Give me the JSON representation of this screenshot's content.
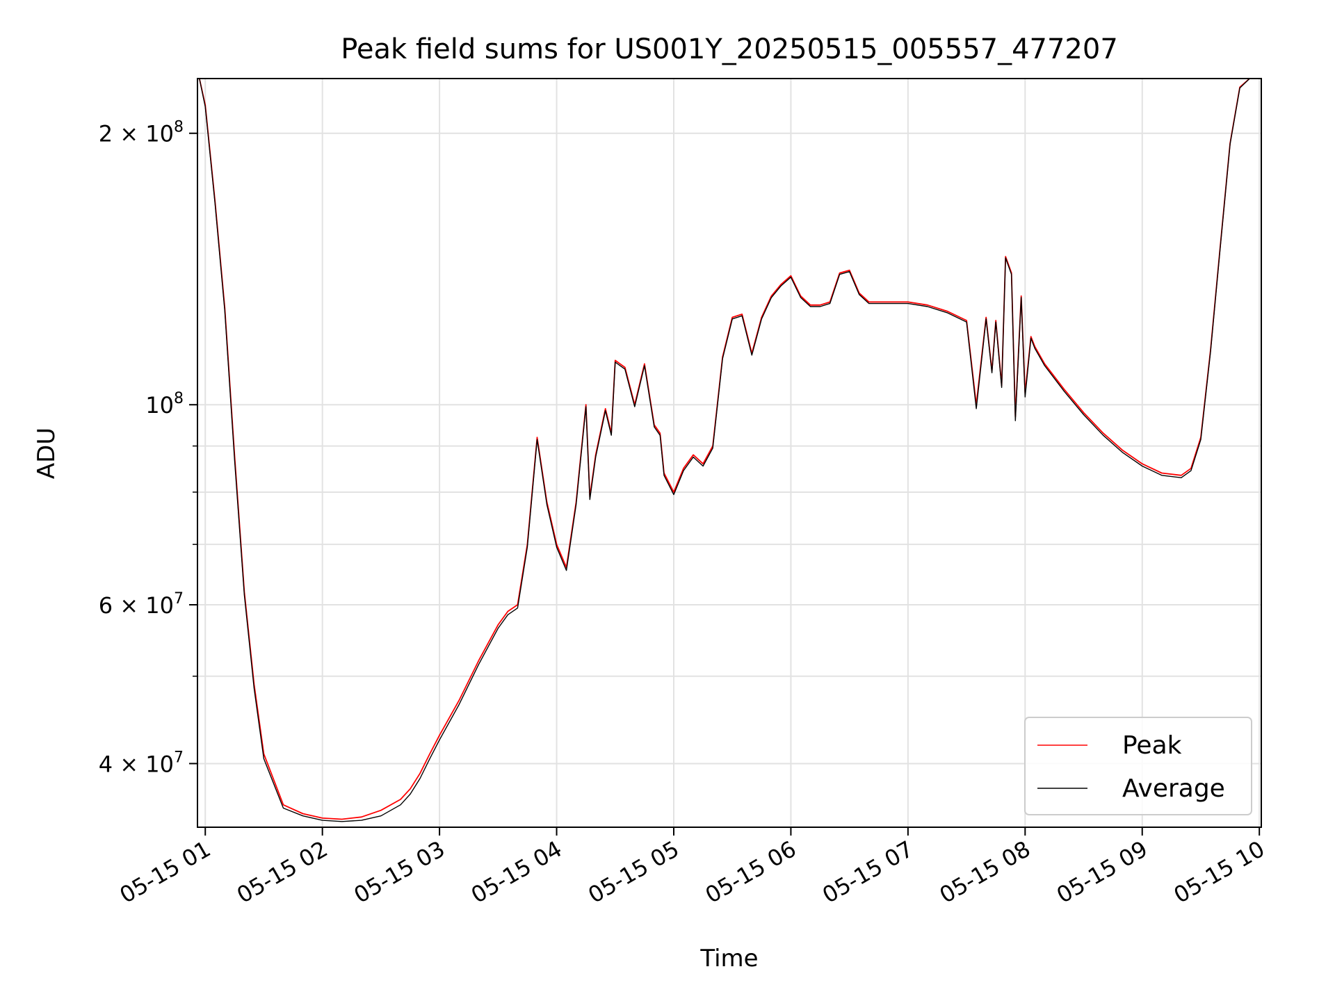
{
  "chart_data": {
    "type": "line",
    "title": "Peak field sums for US001Y_20250515_005557_477207",
    "xlabel": "Time",
    "ylabel": "ADU",
    "y_scale": "log",
    "ylim": [
      34000000,
      230000000
    ],
    "xlim": [
      "2025-05-15 00:56",
      "2025-05-15 10:01"
    ],
    "x_ticks": [
      "05-15 01",
      "05-15 02",
      "05-15 03",
      "05-15 04",
      "05-15 05",
      "05-15 06",
      "05-15 07",
      "05-15 08",
      "05-15 09",
      "05-15 10"
    ],
    "y_ticks": [
      {
        "value": 40000000,
        "mantissa": "4",
        "exp": "7"
      },
      {
        "value": 60000000,
        "mantissa": "6",
        "exp": "7"
      },
      {
        "value": 100000000,
        "mantissa": "",
        "exp": "8"
      },
      {
        "value": 200000000,
        "mantissa": "2",
        "exp": "8"
      }
    ],
    "grid": true,
    "legend_position": "lower-right",
    "x": [
      "00:57",
      "01:00",
      "01:05",
      "01:10",
      "01:15",
      "01:20",
      "01:25",
      "01:30",
      "01:40",
      "01:50",
      "02:00",
      "02:10",
      "02:20",
      "02:30",
      "02:40",
      "02:45",
      "02:50",
      "02:55",
      "03:00",
      "03:10",
      "03:20",
      "03:30",
      "03:35",
      "03:40",
      "03:45",
      "03:50",
      "03:55",
      "04:00",
      "04:05",
      "04:10",
      "04:15",
      "04:17",
      "04:20",
      "04:25",
      "04:28",
      "04:30",
      "04:35",
      "04:40",
      "04:45",
      "04:50",
      "04:53",
      "04:55",
      "05:00",
      "05:05",
      "05:10",
      "05:15",
      "05:20",
      "05:25",
      "05:30",
      "05:35",
      "05:40",
      "05:45",
      "05:50",
      "05:55",
      "06:00",
      "06:05",
      "06:10",
      "06:15",
      "06:20",
      "06:25",
      "06:30",
      "06:35",
      "06:40",
      "06:45",
      "06:50",
      "07:00",
      "07:10",
      "07:20",
      "07:30",
      "07:35",
      "07:40",
      "07:43",
      "07:45",
      "07:48",
      "07:50",
      "07:53",
      "07:55",
      "07:58",
      "08:00",
      "08:03",
      "08:05",
      "08:10",
      "08:20",
      "08:30",
      "08:40",
      "08:50",
      "09:00",
      "09:10",
      "09:20",
      "09:25",
      "09:30",
      "09:35",
      "09:40",
      "09:45",
      "09:50",
      "09:55",
      "09:58"
    ],
    "series": [
      {
        "name": "Peak",
        "color": "#ff0000",
        "values": [
          230000000,
          215000000,
          168000000,
          128000000,
          88000000,
          62000000,
          49000000,
          41000000,
          36000000,
          35200000,
          34800000,
          34700000,
          34900000,
          35500000,
          36500000,
          37500000,
          39000000,
          41000000,
          43000000,
          47000000,
          52000000,
          57000000,
          59000000,
          60000000,
          70000000,
          92000000,
          78000000,
          70000000,
          66000000,
          78000000,
          100000000,
          79000000,
          88000000,
          99000000,
          93000000,
          112000000,
          110000000,
          100000000,
          111000000,
          95000000,
          93000000,
          84000000,
          80000000,
          85000000,
          88000000,
          86000000,
          90000000,
          113000000,
          125000000,
          126000000,
          114000000,
          125000000,
          132000000,
          136000000,
          139000000,
          132000000,
          129000000,
          129000000,
          130000000,
          140000000,
          141000000,
          133000000,
          130000000,
          130000000,
          130000000,
          130000000,
          129000000,
          127000000,
          124000000,
          100000000,
          125000000,
          109000000,
          124000000,
          105000000,
          146000000,
          140000000,
          97000000,
          132000000,
          103000000,
          119000000,
          116000000,
          111000000,
          104000000,
          98000000,
          93000000,
          89000000,
          86000000,
          84000000,
          83500000,
          85000000,
          92000000,
          115000000,
          150000000,
          195000000,
          225000000,
          230000000,
          230000000
        ]
      },
      {
        "name": "Average",
        "color": "#000000",
        "values": [
          230000000,
          214000000,
          167000000,
          127000000,
          87000000,
          61500000,
          48500000,
          40500000,
          35700000,
          35000000,
          34600000,
          34500000,
          34600000,
          35000000,
          36000000,
          37000000,
          38500000,
          40500000,
          42500000,
          46500000,
          51500000,
          56500000,
          58500000,
          59500000,
          69500000,
          91500000,
          77500000,
          69500000,
          65500000,
          77500000,
          99500000,
          78500000,
          87500000,
          98500000,
          92500000,
          111500000,
          109500000,
          99500000,
          110500000,
          94500000,
          92500000,
          83500000,
          79500000,
          84500000,
          87500000,
          85500000,
          89500000,
          112500000,
          124500000,
          125500000,
          113500000,
          124500000,
          131500000,
          135500000,
          138500000,
          131500000,
          128500000,
          128500000,
          129500000,
          139500000,
          140500000,
          132500000,
          129500000,
          129500000,
          129500000,
          129500000,
          128500000,
          126500000,
          123500000,
          99000000,
          124500000,
          108500000,
          123500000,
          104500000,
          145500000,
          139500000,
          96000000,
          131500000,
          102000000,
          118500000,
          115500000,
          110500000,
          103500000,
          97500000,
          92500000,
          88500000,
          85500000,
          83500000,
          83000000,
          84500000,
          91500000,
          114500000,
          149500000,
          194500000,
          224500000,
          230000000,
          230000000
        ]
      }
    ]
  }
}
